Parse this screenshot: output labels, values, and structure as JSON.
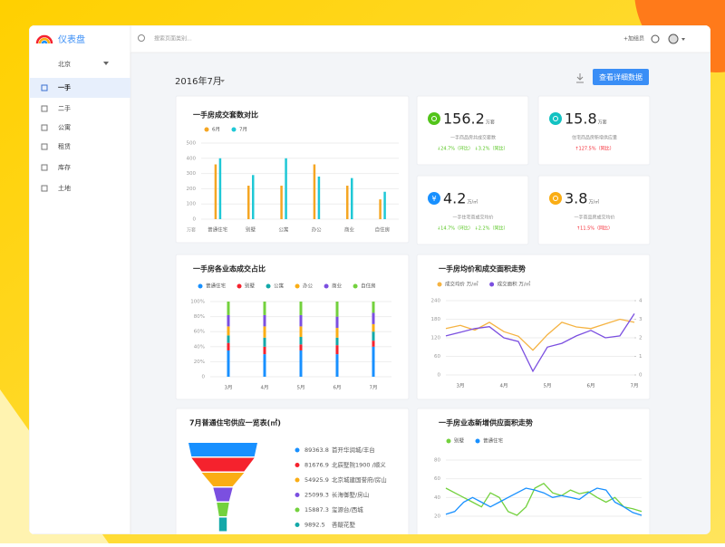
{
  "sidebar": {
    "logo": "仪表盘",
    "city": "北京",
    "menu": [
      "一手",
      "二手",
      "公寓",
      "租赁",
      "库存",
      "土地"
    ]
  },
  "topbar": {
    "search_placeholder": "搜索页面类别...",
    "add_member": "+加组员"
  },
  "header": {
    "date": "2016年7月",
    "button": "查看详细数据"
  },
  "kpis": [
    {
      "value": 156.2,
      "unit": "万套",
      "label": "一手商品房共成交套数",
      "changes": [
        "↓24.7%（环比）",
        "↓3.2%（同比）"
      ],
      "icon_color": "#52c41a"
    },
    {
      "value": 15.8,
      "unit": "万套",
      "label": "住宅商品房新增供应量",
      "changes": [
        "↑127.5%（同比）"
      ],
      "icon_color": "#13c2c2"
    },
    {
      "value": 4.2,
      "unit": "万/㎡",
      "label": "一手住宅商成交均价",
      "changes": [
        "↓14.7%（环比）",
        "↓2.2%（同比）"
      ],
      "icon_color": "#1890ff",
      "icon": "¥"
    },
    {
      "value": 3.8,
      "unit": "万/㎡",
      "label": "一手商品房成交均价",
      "changes": [
        "↑11.5%（同比）"
      ],
      "icon_color": "#faad14"
    }
  ],
  "chart_data": [
    {
      "type": "bar",
      "title": "一手房成交套数对比",
      "y_label": "万套",
      "categories": [
        "普通住宅",
        "别墅",
        "公寓",
        "办公",
        "商业",
        "自住房"
      ],
      "series": [
        {
          "name": "6月",
          "color": "#f5a623",
          "values": [
            360,
            220,
            220,
            360,
            220,
            130
          ]
        },
        {
          "name": "7月",
          "color": "#1fc8d6",
          "values": [
            400,
            290,
            400,
            280,
            270,
            180
          ]
        }
      ],
      "ylim": [
        0,
        500
      ],
      "yticks": [
        0,
        100,
        200,
        300,
        400,
        500
      ],
      "grid": true,
      "legend": "top-left"
    },
    {
      "type": "stacked_bar",
      "title": "一手房各业态成交占比",
      "categories": [
        "3月",
        "4月",
        "5月",
        "6月",
        "7月"
      ],
      "series": [
        {
          "name": "普通住宅",
          "color": "#1890ff",
          "values": [
            35,
            30,
            35,
            30,
            40
          ]
        },
        {
          "name": "别墅",
          "color": "#f5222d",
          "values": [
            10,
            10,
            8,
            12,
            8
          ]
        },
        {
          "name": "公寓",
          "color": "#13a8a8",
          "values": [
            10,
            12,
            10,
            10,
            12
          ]
        },
        {
          "name": "办公",
          "color": "#faad14",
          "values": [
            12,
            15,
            14,
            13,
            10
          ]
        },
        {
          "name": "商业",
          "color": "#7b4fe0",
          "values": [
            15,
            15,
            15,
            15,
            15
          ]
        },
        {
          "name": "自住房",
          "color": "#73d13d",
          "values": [
            18,
            18,
            18,
            20,
            15
          ]
        }
      ],
      "ylim": [
        0,
        100
      ],
      "yticks": [
        {
          "value": 0,
          "label": "0"
        },
        {
          "value": 20,
          "label": "20%"
        },
        {
          "value": 40,
          "label": "40%"
        },
        {
          "value": 60,
          "label": "60%"
        },
        {
          "value": 80,
          "label": "80%"
        },
        {
          "value": 100,
          "label": "100%"
        }
      ],
      "grid": true,
      "legend": "top-left"
    },
    {
      "type": "line",
      "title": "一手房均价和成交面积走势",
      "categories": [
        null,
        "3月",
        null,
        null,
        "4月",
        null,
        null,
        "5月",
        null,
        null,
        "6月",
        null,
        null,
        "7月"
      ],
      "series": [
        {
          "name": "成交均价 万/㎡",
          "color": "#f5b342",
          "values": [
            150,
            160,
            145,
            170,
            140,
            125,
            80,
            130,
            170,
            155,
            150,
            165,
            180,
            170
          ]
        },
        {
          "name": "成交面积 万/㎡",
          "color": "#7b4fe0",
          "axis": "y2",
          "values": [
            2.1,
            2.3,
            2.5,
            2.6,
            2.0,
            1.8,
            0.2,
            1.5,
            1.7,
            2.1,
            2.4,
            2.0,
            2.1,
            3.3
          ]
        }
      ],
      "ylim": [
        0,
        240
      ],
      "yticks": [
        0,
        60,
        120,
        180,
        240
      ],
      "y2lim": [
        0,
        4
      ],
      "y2ticks": [
        0,
        1,
        2,
        3,
        4
      ],
      "grid": true,
      "legend": "top-left"
    },
    {
      "type": "funnel",
      "title": "7月普通住宅供应一览表(㎡)",
      "categories": [
        "首开华润城/丰台",
        "北辰墅院1900 /顺义",
        "北京城建国誉府/房山",
        "长海御墅/房山",
        "玺源台/西城",
        "香醍花墅"
      ],
      "values": [
        89363.8,
        81676.9,
        54925.9,
        25099.3,
        15887.3,
        9892.5
      ],
      "colors": [
        "#1890ff",
        "#f5222d",
        "#faad14",
        "#7b4fe0",
        "#73d13d",
        "#13a8a8"
      ]
    },
    {
      "type": "line",
      "title": "一手房业态新增供应面积走势",
      "categories": [
        null,
        null,
        null,
        null,
        null,
        null,
        null,
        null,
        null,
        null,
        null,
        null,
        null,
        null,
        null,
        null,
        null,
        null,
        null,
        null,
        null,
        null,
        null
      ],
      "series": [
        {
          "name": "别墅",
          "color": "#73d13d",
          "values": [
            50,
            45,
            40,
            35,
            30,
            45,
            40,
            25,
            21,
            30,
            50,
            55,
            45,
            42,
            48,
            44,
            46,
            40,
            35,
            40,
            30,
            28,
            25
          ]
        },
        {
          "name": "普通住宅",
          "color": "#1890ff",
          "values": [
            22,
            25,
            35,
            40,
            35,
            30,
            35,
            40,
            45,
            50,
            48,
            45,
            40,
            42,
            40,
            38,
            45,
            50,
            48,
            35,
            30,
            24,
            21
          ]
        }
      ],
      "ylim": [
        20,
        80
      ],
      "yticks": [
        20,
        40,
        60,
        80
      ],
      "grid": true,
      "legend": "top-left"
    }
  ]
}
